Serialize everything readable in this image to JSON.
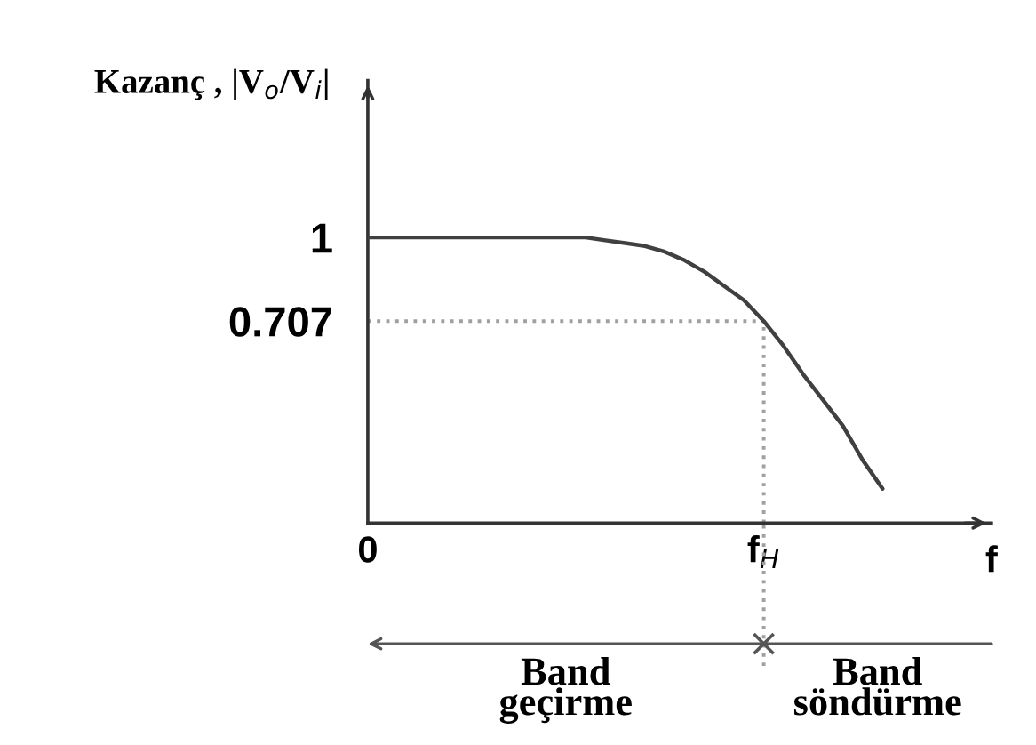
{
  "chart_data": {
    "type": "line",
    "ylabel": "Kazanç , |V$_{o}$/V$_{i}$|",
    "xlabel": "f",
    "categories": [
      "0",
      null,
      null,
      null,
      null,
      null,
      null,
      null,
      null,
      null,
      null,
      null,
      null,
      null,
      null,
      null,
      null,
      null,
      null,
      null,
      "f$_{H}$",
      null,
      null,
      null,
      null,
      null,
      null,
      null,
      null,
      null,
      null,
      null
    ],
    "values": [
      1,
      1,
      1,
      1,
      1,
      1,
      1,
      1,
      1,
      1,
      1,
      1,
      0.99,
      0.98,
      0.97,
      0.95,
      0.92,
      0.88,
      0.83,
      0.78,
      0.707,
      0.62,
      0.52,
      0.43,
      0.34,
      0.22,
      0.12,
      null,
      null,
      null,
      null,
      null
    ],
    "color": "#404040",
    "line_style": "solid",
    "ylim": [
      0,
      1.55
    ],
    "yticks": [
      0.707,
      1
    ],
    "ref_lines": [
      {
        "axis": "y",
        "value": 0.707,
        "color": "#a0a0a0",
        "line_style": "dotted"
      },
      {
        "axis": "x",
        "value": "f$_{H}$",
        "color": "#a0a0a0",
        "line_style": "dotted"
      }
    ],
    "annotations": [
      "Band\ngeçirme",
      "Band\nsöndürme"
    ]
  }
}
